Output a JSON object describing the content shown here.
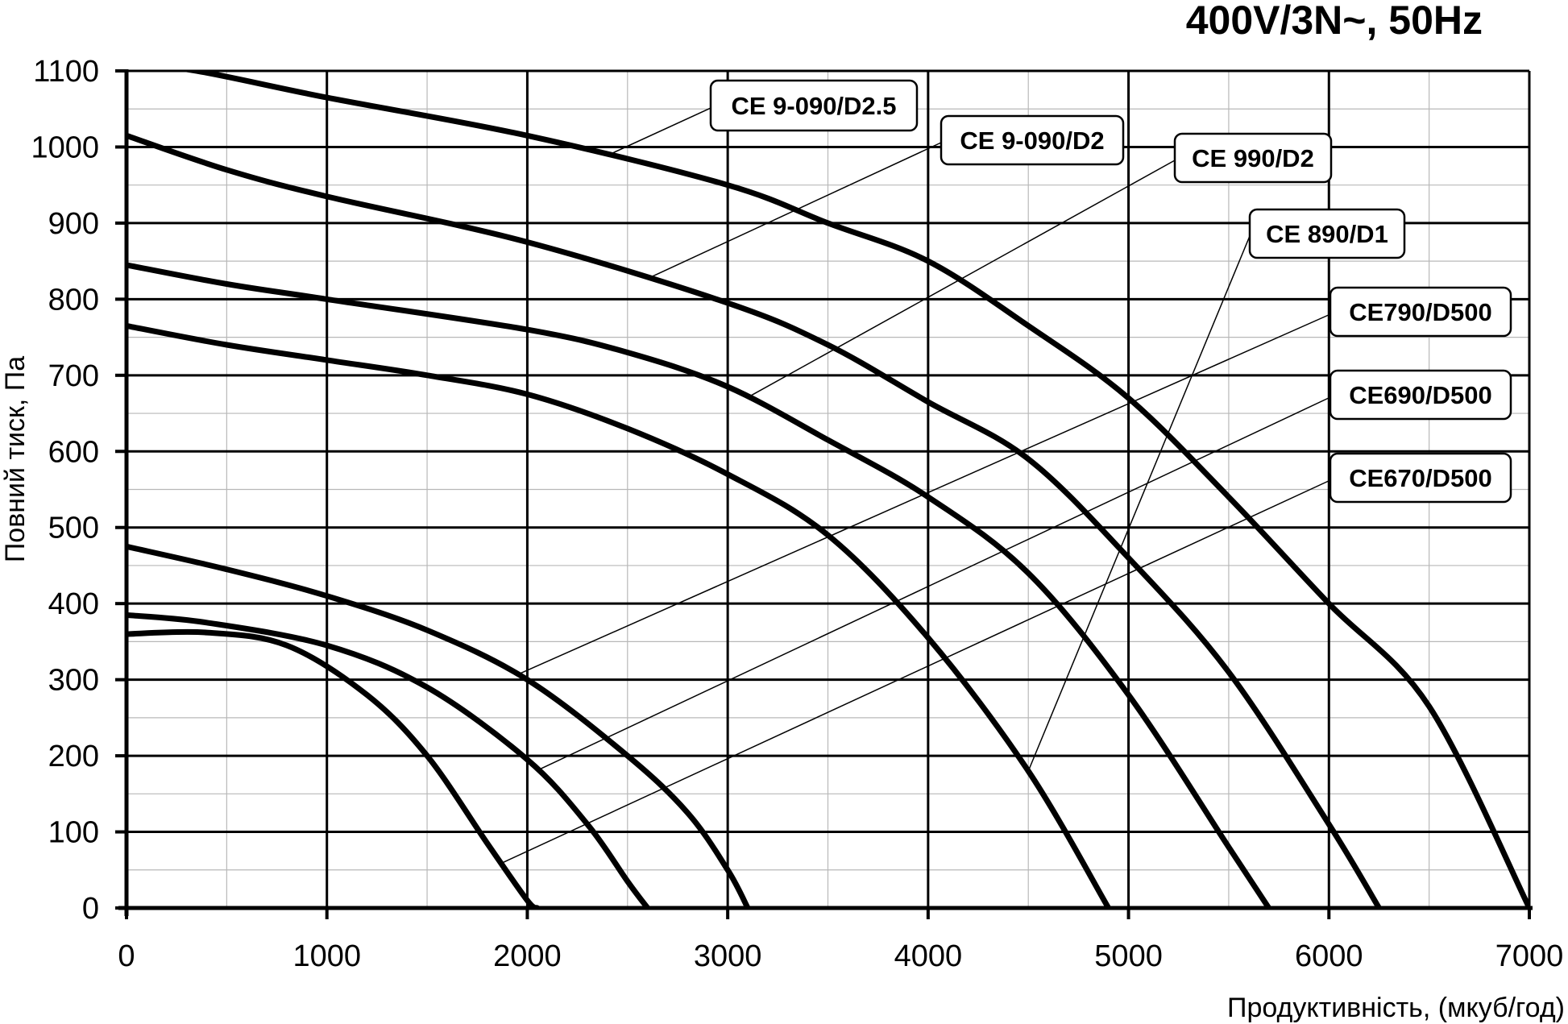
{
  "chart_data": {
    "type": "line",
    "title": "400V/3N~, 50Hz",
    "xlabel": "Продуктивність, (мкуб/год)",
    "ylabel": "Повний тиск, Па",
    "xlim": [
      0,
      7000
    ],
    "ylim": [
      0,
      1100
    ],
    "x_ticks": [
      "0",
      "1000",
      "2000",
      "3000",
      "4000",
      "5000",
      "6000",
      "7000"
    ],
    "y_ticks": [
      "0",
      "100",
      "200",
      "300",
      "400",
      "500",
      "600",
      "700",
      "800",
      "900",
      "1000",
      "1100"
    ],
    "grid": true,
    "series": [
      {
        "name": "CE 9-090/D2.5",
        "x": [
          0,
          350,
          1000,
          2000,
          3000,
          3500,
          4000,
          4500,
          5000,
          5500,
          6000,
          6500,
          7000
        ],
        "y": [
          1110,
          1100,
          1065,
          1015,
          950,
          900,
          850,
          765,
          670,
          540,
          400,
          265,
          0
        ]
      },
      {
        "name": "CE 9-090/D2",
        "x": [
          0,
          500,
          1000,
          2000,
          3000,
          3500,
          4000,
          4500,
          5000,
          5500,
          6000,
          6250
        ],
        "y": [
          1015,
          970,
          935,
          875,
          795,
          740,
          665,
          590,
          460,
          310,
          110,
          0
        ]
      },
      {
        "name": "CE 990/D2",
        "x": [
          0,
          500,
          1000,
          2000,
          2500,
          3000,
          3500,
          4000,
          4500,
          5000,
          5500,
          5700
        ],
        "y": [
          845,
          820,
          800,
          760,
          730,
          685,
          615,
          540,
          440,
          280,
          80,
          0
        ]
      },
      {
        "name": "CE 890/D1",
        "x": [
          0,
          500,
          1000,
          1500,
          2000,
          2500,
          3000,
          3500,
          4000,
          4500,
          4900
        ],
        "y": [
          765,
          740,
          720,
          700,
          675,
          630,
          570,
          490,
          355,
          180,
          0
        ]
      },
      {
        "name": "CE790/D500",
        "x": [
          0,
          500,
          1000,
          1500,
          2000,
          2500,
          2800,
          3000,
          3100
        ],
        "y": [
          475,
          445,
          410,
          365,
          300,
          200,
          125,
          50,
          0
        ]
      },
      {
        "name": "CE690/D500",
        "x": [
          0,
          400,
          1000,
          1500,
          2000,
          2300,
          2500,
          2600
        ],
        "y": [
          385,
          375,
          345,
          290,
          195,
          110,
          35,
          0
        ]
      },
      {
        "name": "CE670/D500",
        "x": [
          0,
          400,
          800,
          1200,
          1500,
          1800,
          2000,
          2050
        ],
        "y": [
          360,
          362,
          345,
          280,
          200,
          85,
          10,
          0
        ]
      }
    ]
  }
}
